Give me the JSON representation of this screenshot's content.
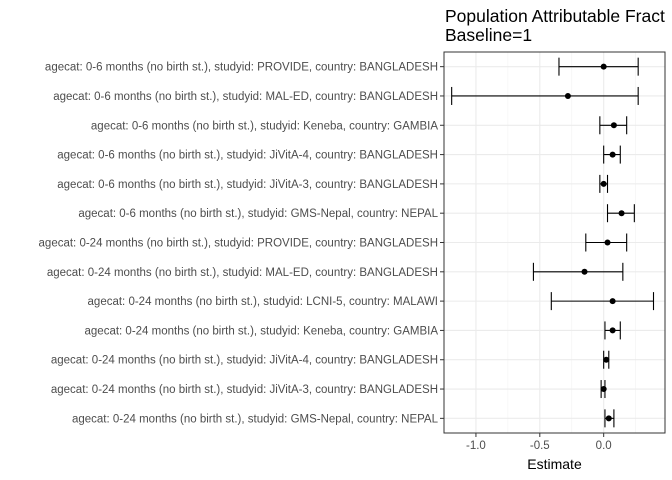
{
  "chart_data": {
    "type": "forest",
    "title_lines": [
      "Population Attributable Fract",
      "Baseline=1"
    ],
    "xlabel": "Estimate",
    "ylabel": "",
    "xlim": [
      -1.25,
      0.48
    ],
    "x_ticks": [
      -1.0,
      -0.5,
      0.0
    ],
    "x_tick_labels": [
      "-1.0",
      "-0.5",
      "0.0"
    ],
    "grid": true,
    "rows": [
      {
        "label": "agecat: 0-6 months (no birth st.), studyid: PROVIDE, country: BANGLADESH",
        "estimate": 0.0,
        "lower": -0.35,
        "upper": 0.27
      },
      {
        "label": "agecat: 0-6 months (no birth st.), studyid: MAL-ED, country: BANGLADESH",
        "estimate": -0.28,
        "lower": -1.19,
        "upper": 0.27
      },
      {
        "label": "agecat: 0-6 months (no birth st.), studyid: Keneba, country: GAMBIA",
        "estimate": 0.08,
        "lower": -0.03,
        "upper": 0.18
      },
      {
        "label": "agecat: 0-6 months (no birth st.), studyid: JiVitA-4, country: BANGLADESH",
        "estimate": 0.07,
        "lower": 0.0,
        "upper": 0.13
      },
      {
        "label": "agecat: 0-6 months (no birth st.), studyid: JiVitA-3, country: BANGLADESH",
        "estimate": 0.0,
        "lower": -0.03,
        "upper": 0.03
      },
      {
        "label": "agecat: 0-6 months (no birth st.), studyid: GMS-Nepal, country: NEPAL",
        "estimate": 0.14,
        "lower": 0.03,
        "upper": 0.24
      },
      {
        "label": "agecat: 0-24 months (no birth st.), studyid: PROVIDE, country: BANGLADESH",
        "estimate": 0.03,
        "lower": -0.14,
        "upper": 0.18
      },
      {
        "label": "agecat: 0-24 months (no birth st.), studyid: MAL-ED, country: BANGLADESH",
        "estimate": -0.15,
        "lower": -0.55,
        "upper": 0.15
      },
      {
        "label": "agecat: 0-24 months (no birth st.), studyid: LCNI-5, country: MALAWI",
        "estimate": 0.07,
        "lower": -0.41,
        "upper": 0.39
      },
      {
        "label": "agecat: 0-24 months (no birth st.), studyid: Keneba, country: GAMBIA",
        "estimate": 0.07,
        "lower": 0.01,
        "upper": 0.13
      },
      {
        "label": "agecat: 0-24 months (no birth st.), studyid: JiVitA-4, country: BANGLADESH",
        "estimate": 0.02,
        "lower": 0.0,
        "upper": 0.04
      },
      {
        "label": "agecat: 0-24 months (no birth st.), studyid: JiVitA-3, country: BANGLADESH",
        "estimate": 0.0,
        "lower": -0.02,
        "upper": 0.01
      },
      {
        "label": "agecat: 0-24 months (no birth st.), studyid: GMS-Nepal, country: NEPAL",
        "estimate": 0.04,
        "lower": 0.01,
        "upper": 0.08
      }
    ]
  }
}
